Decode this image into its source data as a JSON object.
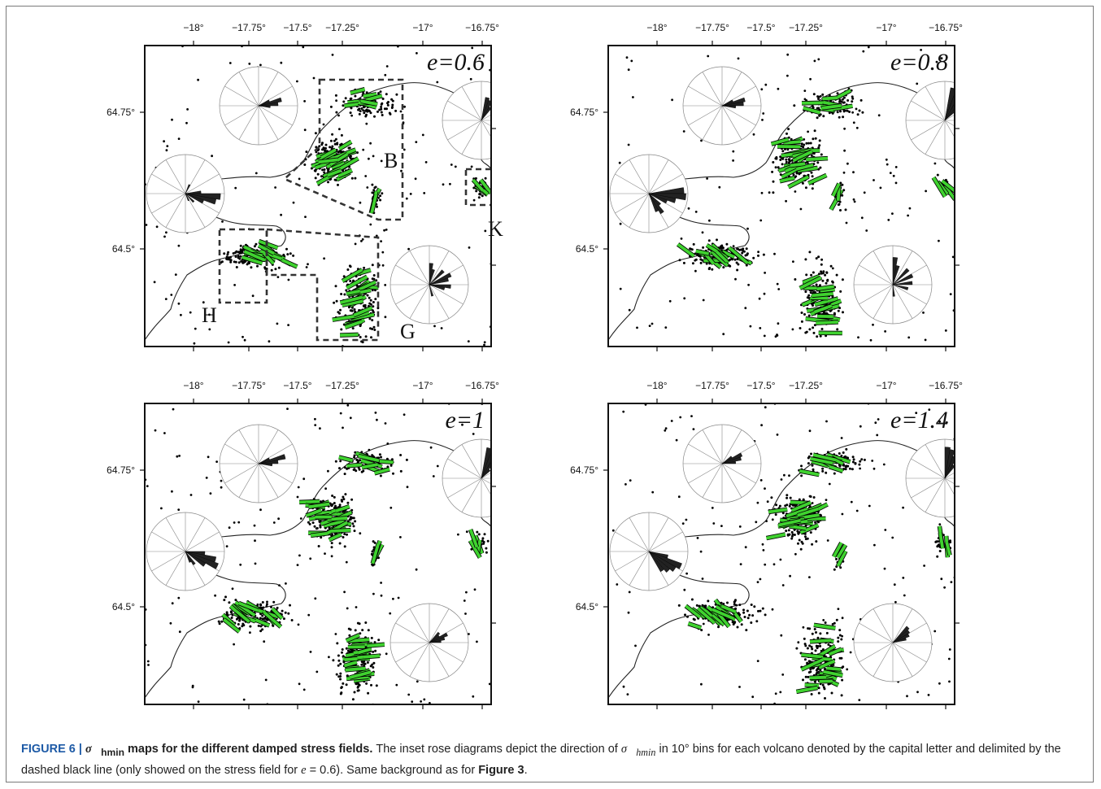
{
  "figure": {
    "panels": [
      {
        "id": "p1",
        "label": "e=0.6",
        "show_regions": true
      },
      {
        "id": "p2",
        "label": "e=0.8",
        "show_regions": false
      },
      {
        "id": "p3",
        "label": "e=1",
        "show_regions": false
      },
      {
        "id": "p4",
        "label": "e=1.4",
        "show_regions": false
      }
    ],
    "lon_ticks": [
      "−18°",
      "−17.75°",
      "−17.5°",
      "−17.25°",
      "−17°",
      "−16.75°"
    ],
    "lat_ticks": [
      "64.75°",
      "64.5°"
    ],
    "region_labels": {
      "B": "B",
      "K": "K",
      "H": "H",
      "G": "G"
    },
    "colors": {
      "stress_bar": "#3fd22f",
      "rose_fill": "#222222",
      "grid": "#888888"
    }
  },
  "caption": {
    "label": "FIGURE 6 |",
    "title_symbol": "σ⃗",
    "title_sub": "hmin",
    "title_rest": " maps for the different damped stress fields.",
    "body_1": " The inset rose diagrams depict the direction of ",
    "body_sym": "σ⃗",
    "body_sub": "hmin",
    "body_2": " in 10° bins for each volcano denoted by the capital letter and delimited by the dashed black line (only showed on the stress field for ",
    "body_e": "e",
    "body_3": " = 0.6). Same background as for ",
    "ref": "Figure 3",
    "body_end": "."
  }
}
